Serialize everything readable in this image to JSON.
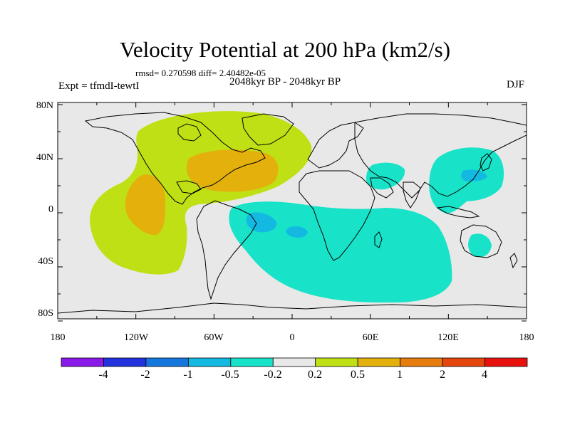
{
  "title": "Velocity Potential at 200 hPa (km2/s)",
  "stats_line": "rmsd= 0.270598 diff= 2.40482e-05",
  "period_line": "2048kyr BP - 2048kyr BP",
  "expt_line": "Expt = tfmdI-tewtI",
  "season": "DJF",
  "axes": {
    "x_ticks": [
      "180",
      "120W",
      "60W",
      "0",
      "60E",
      "120E",
      "180"
    ],
    "y_ticks": [
      "80N",
      "40N",
      "0",
      "40S",
      "80S"
    ]
  },
  "colorbar": {
    "labels": [
      "-4",
      "-2",
      "-1",
      "-0.5",
      "-0.2",
      "0.2",
      "0.5",
      "1",
      "2",
      "4"
    ],
    "colors": [
      "#8a1ae8",
      "#2233dd",
      "#1577dd",
      "#13b9e0",
      "#18e3c8",
      "#e8e8e8",
      "#bfe014",
      "#e3b00c",
      "#e57c0d",
      "#e4460d",
      "#e8110e"
    ]
  },
  "colors": {
    "ocean_bg": "#e8e8e8",
    "coast": "#000000",
    "positive_low": "#bfe014",
    "positive_mid": "#e3b00c",
    "negative_low": "#18e3c8",
    "negative_mid": "#13b9e0"
  }
}
